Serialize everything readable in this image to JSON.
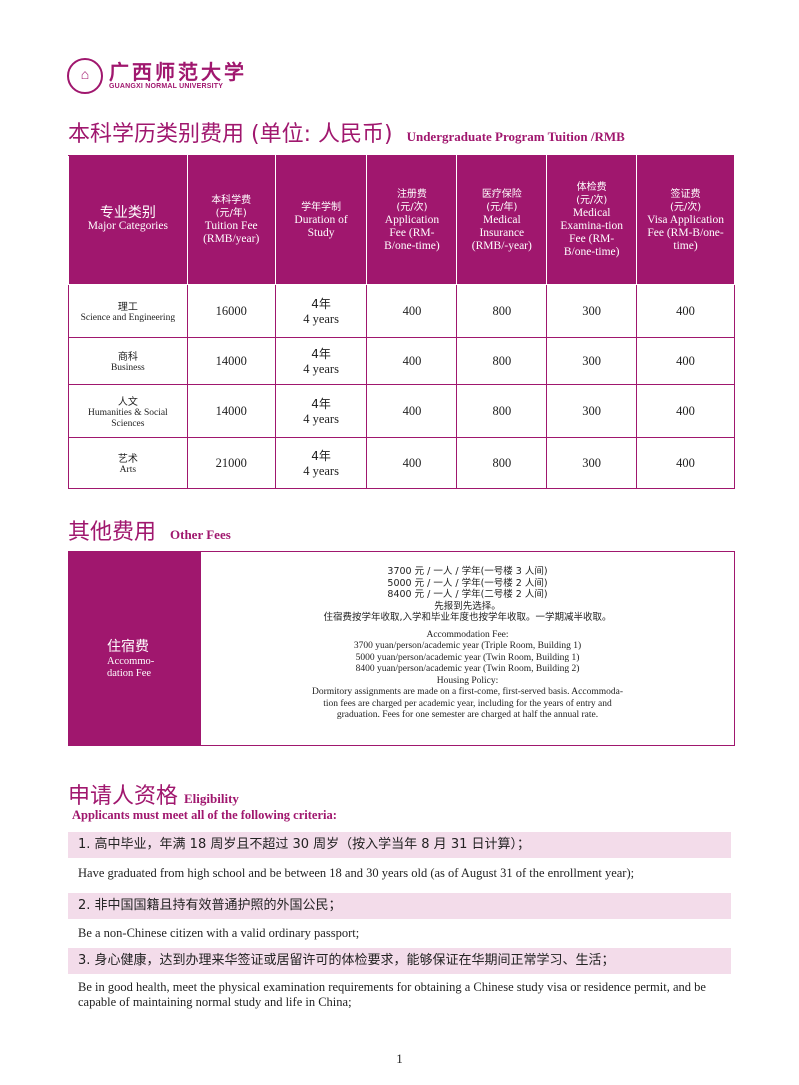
{
  "logo": {
    "cn": "广西师范大学",
    "en": "GUANGXI NORMAL UNIVERSITY"
  },
  "tuition": {
    "title_cn": "本科学历类别费用 (单位: 人民币)",
    "title_en": "Undergraduate Program Tuition /RMB",
    "headers": [
      {
        "cn": "专业类别",
        "en": "Major Categories"
      },
      {
        "cn": "本科学费\n(元/年)",
        "en": "Tuition Fee (RMB/year)"
      },
      {
        "cn": "学年学制",
        "en": "Duration of Study"
      },
      {
        "cn": "注册费\n(元/次)",
        "en": "Application Fee (RM-B/one-time)"
      },
      {
        "cn": "医疗保险\n(元/年)",
        "en": "Medical Insurance (RMB/-year)"
      },
      {
        "cn": "体检费\n(元/次)",
        "en": "Medical Examina-tion Fee (RM-B/one-time)"
      },
      {
        "cn": "签证费\n(元/次)",
        "en": "Visa Application Fee (RM-B/one-time)"
      }
    ],
    "rows": [
      {
        "cn": "理工",
        "en": "Science and Engineering",
        "tuition": "16000",
        "dur_cn": "4年",
        "dur_en": "4 years",
        "app": "400",
        "ins": "800",
        "med": "300",
        "visa": "400"
      },
      {
        "cn": "商科",
        "en": "Business",
        "tuition": "14000",
        "dur_cn": "4年",
        "dur_en": "4 years",
        "app": "400",
        "ins": "800",
        "med": "300",
        "visa": "400"
      },
      {
        "cn": "人文",
        "en": "Humanities & Social Sciences",
        "tuition": "14000",
        "dur_cn": "4年",
        "dur_en": "4 years",
        "app": "400",
        "ins": "800",
        "med": "300",
        "visa": "400"
      },
      {
        "cn": "艺术",
        "en": "Arts",
        "tuition": "21000",
        "dur_cn": "4年",
        "dur_en": "4 years",
        "app": "400",
        "ins": "800",
        "med": "300",
        "visa": "400"
      }
    ]
  },
  "other": {
    "title_cn": "其他费用",
    "title_en": "Other Fees",
    "label_cn": "住宿费",
    "label_en": "Accommo-dation Fee",
    "lines_cn": [
      "3700 元 / 一人 / 学年(一号楼 3 人间)",
      "5000 元 / 一人 / 学年(一号楼 2 人间)",
      "8400 元 / 一人 / 学年(二号楼 2 人间)",
      "先报到先选择。",
      "住宿费按学年收取,入学和毕业年度也按学年收取。一学期减半收取。"
    ],
    "lines_en": [
      "Accommodation Fee:",
      "3700 yuan/person/academic year (Triple Room, Building 1)",
      "5000 yuan/person/academic year (Twin Room, Building 1)",
      "8400 yuan/person/academic year (Twin Room, Building 2)",
      "Housing Policy:",
      "Dormitory assignments are made on a first-come, first-served basis. Accommoda-",
      "tion fees are charged per academic year, including for the years of entry and",
      "graduation. Fees for one semester are charged at half the annual rate."
    ]
  },
  "eligibility": {
    "title_cn": "申请人资格",
    "title_en": "Eligibility",
    "subtitle": "Applicants must meet all of the following criteria:",
    "items": [
      {
        "cn": "1. 高中毕业，年满 18 周岁且不超过 30 周岁（按入学当年 8 月 31 日计算）；",
        "en": "Have graduated from high school and be between 18 and 30 years old (as of August 31 of the enrollment year);"
      },
      {
        "cn": "2. 非中国国籍且持有效普通护照的外国公民；",
        "en": "Be a non-Chinese citizen with a valid ordinary passport;"
      },
      {
        "cn": "3. 身心健康，达到办理来华签证或居留许可的体检要求，能够保证在华期间正常学习、生活；",
        "en": "Be in good health, meet the physical examination requirements for obtaining a Chinese study visa or residence permit, and be capable of maintaining normal study and life in China;"
      }
    ]
  },
  "page_number": "1",
  "colors": {
    "accent": "#a0176e",
    "light": "#f3dcea"
  }
}
